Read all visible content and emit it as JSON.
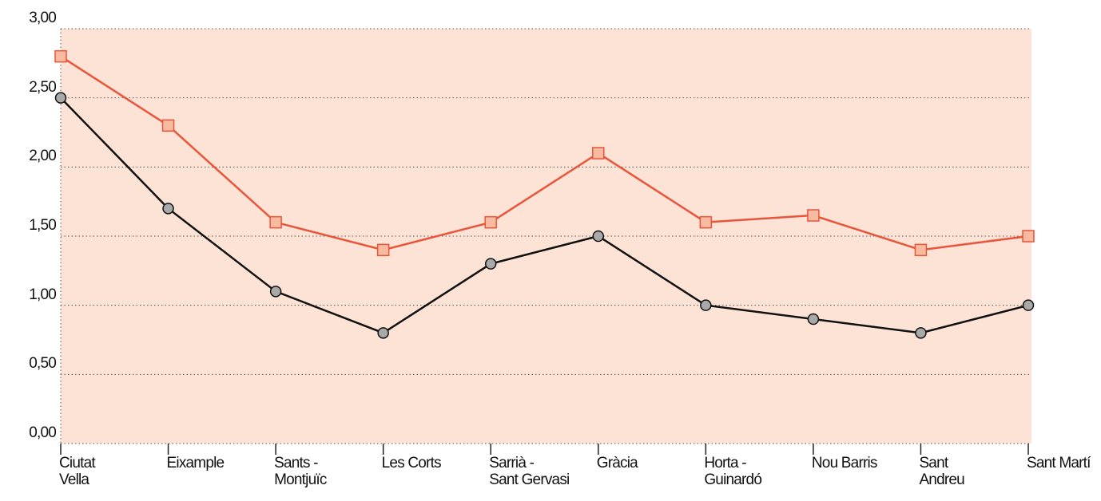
{
  "chart_data": {
    "type": "line",
    "categories": [
      "Ciutat\nVella",
      "Eixample",
      "Sants -\nMontjuïc",
      "Les Corts",
      "Sarrià -\nSant Gervasi",
      "Gràcia",
      "Horta -\nGuinardó",
      "Nou Barris",
      "Sant\nAndreu",
      "Sant Martí"
    ],
    "series": [
      {
        "color": "#e8553a",
        "marker": "square",
        "marker_fill": "#f9bba0",
        "values": [
          2.8,
          2.3,
          1.6,
          1.4,
          1.6,
          2.1,
          1.6,
          1.65,
          1.4,
          1.5
        ]
      },
      {
        "color": "#111111",
        "marker": "circle",
        "marker_fill": "#a9a9a9",
        "values": [
          2.5,
          1.7,
          1.1,
          0.8,
          1.3,
          1.5,
          1.0,
          0.9,
          0.8,
          1.0
        ]
      }
    ],
    "ylim": [
      0,
      3
    ],
    "yticks": [
      {
        "value": 0,
        "label": "0,00"
      },
      {
        "value": 0.5,
        "label": "0,50"
      },
      {
        "value": 1,
        "label": "1,00"
      },
      {
        "value": 1.5,
        "label": "1,50"
      },
      {
        "value": 2,
        "label": "2,00"
      },
      {
        "value": 2.5,
        "label": "2,50"
      },
      {
        "value": 3,
        "label": "3,00"
      }
    ],
    "grid": true,
    "background": "#fde3d6"
  }
}
